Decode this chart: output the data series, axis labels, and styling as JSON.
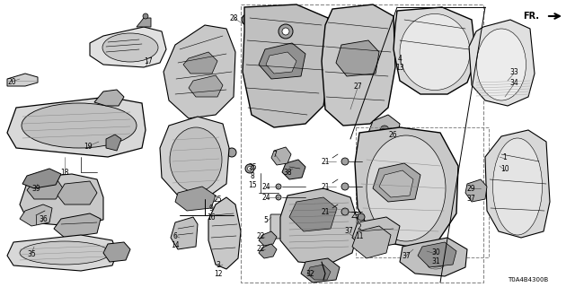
{
  "bg_color": "#ffffff",
  "line_color": "#000000",
  "text_color": "#000000",
  "diagram_code": "T0A4B4300B",
  "font_size": 5.5,
  "figsize": [
    6.4,
    3.2
  ],
  "dpi": 100
}
